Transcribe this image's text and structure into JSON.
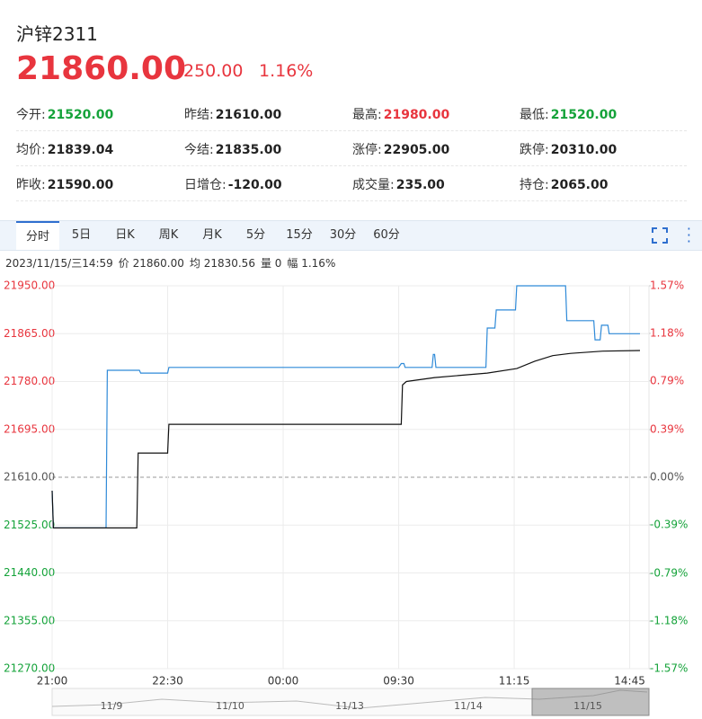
{
  "header": {
    "title": "沪锌2311",
    "price": "21860.00",
    "change": "250.00",
    "change_pct": "1.16%"
  },
  "stats": [
    [
      {
        "label": "今开:",
        "value": "21520.00",
        "color": "#15a33a"
      },
      {
        "label": "昨结:",
        "value": "21610.00",
        "color": "#222222"
      },
      {
        "label": "最高:",
        "value": "21980.00",
        "color": "#e8353e"
      },
      {
        "label": "最低:",
        "value": "21520.00",
        "color": "#15a33a"
      }
    ],
    [
      {
        "label": "均价:",
        "value": "21839.04",
        "color": "#222222"
      },
      {
        "label": "今结:",
        "value": "21835.00",
        "color": "#222222"
      },
      {
        "label": "涨停:",
        "value": "22905.00",
        "color": "#222222"
      },
      {
        "label": "跌停:",
        "value": "20310.00",
        "color": "#222222"
      }
    ],
    [
      {
        "label": "昨收:",
        "value": "21590.00",
        "color": "#222222"
      },
      {
        "label": "日增仓:",
        "value": "-120.00",
        "color": "#222222"
      },
      {
        "label": "成交量:",
        "value": "235.00",
        "color": "#222222"
      },
      {
        "label": "持仓:",
        "value": "2065.00",
        "color": "#222222"
      }
    ]
  ],
  "tabs": [
    "分时",
    "5日",
    "日K",
    "周K",
    "月K",
    "5分",
    "15分",
    "30分",
    "60分"
  ],
  "active_tab": 0,
  "info_bar": [
    "2023/11/15/三14:59",
    "价 21860.00",
    "均 21830.56",
    "量 0",
    "幅 1.16%"
  ],
  "chart_data": {
    "type": "line",
    "grid": true,
    "xlim": [
      0,
      465
    ],
    "xticks": [
      {
        "value": 0,
        "label": "21:00"
      },
      {
        "value": 90,
        "label": "22:30"
      },
      {
        "value": 180,
        "label": "00:00"
      },
      {
        "value": 270,
        "label": "09:30"
      },
      {
        "value": 360,
        "label": "11:15"
      },
      {
        "value": 450,
        "label": "14:45"
      }
    ],
    "ylim": [
      21270,
      21950
    ],
    "yticks": [
      {
        "value": 21270,
        "label": "21270.00"
      },
      {
        "value": 21355,
        "label": "21355.00"
      },
      {
        "value": 21440,
        "label": "21440.00"
      },
      {
        "value": 21525,
        "label": "21525.00"
      },
      {
        "value": 21610,
        "label": "21610.00"
      },
      {
        "value": 21695,
        "label": "21695.00"
      },
      {
        "value": 21780,
        "label": "21780.00"
      },
      {
        "value": 21865,
        "label": "21865.00"
      },
      {
        "value": 21950,
        "label": "21950.00"
      }
    ],
    "y2lim": [
      -1.57,
      1.57
    ],
    "y2ticks": [
      {
        "value": -1.57,
        "label": "-1.57%"
      },
      {
        "value": -1.18,
        "label": "-1.18%"
      },
      {
        "value": -0.79,
        "label": "-0.79%"
      },
      {
        "value": -0.39,
        "label": "-0.39%"
      },
      {
        "value": 0,
        "label": "0.00%"
      },
      {
        "value": 0.39,
        "label": "0.39%"
      },
      {
        "value": 0.79,
        "label": "0.79%"
      },
      {
        "value": 1.18,
        "label": "1.18%"
      },
      {
        "value": 1.57,
        "label": "1.57%"
      }
    ],
    "up_color": "#e8353e",
    "down_color": "#15a33a",
    "flat_color": "#555555",
    "series": [
      {
        "color": "#2f8ad8",
        "x": [
          0,
          1,
          42,
          43,
          68,
          69,
          90,
          91,
          270,
          272,
          274,
          275,
          296,
          297,
          298,
          299,
          338,
          339,
          345,
          346,
          361,
          362,
          400,
          401,
          422,
          423,
          427,
          428,
          433,
          434,
          458
        ],
        "values": [
          21586,
          21520,
          21520,
          21800,
          21800,
          21795,
          21795,
          21805,
          21805,
          21812,
          21812,
          21805,
          21805,
          21828,
          21828,
          21805,
          21805,
          21875,
          21875,
          21907,
          21907,
          21950,
          21950,
          21888,
          21888,
          21854,
          21854,
          21880,
          21880,
          21865,
          21865
        ]
      },
      {
        "color": "#111111",
        "x": [
          0,
          1,
          66,
          67,
          90,
          91,
          272,
          273,
          276,
          298,
          339,
          362,
          376,
          390,
          404,
          429,
          458
        ],
        "values": [
          21586,
          21520,
          21520,
          21653,
          21653,
          21704,
          21704,
          21774,
          21780,
          21787,
          21795,
          21803,
          21816,
          21826,
          21830,
          21834,
          21835
        ]
      }
    ]
  },
  "navigator": [
    "11/9",
    "11/10",
    "11/13",
    "11/14",
    "11/15"
  ]
}
